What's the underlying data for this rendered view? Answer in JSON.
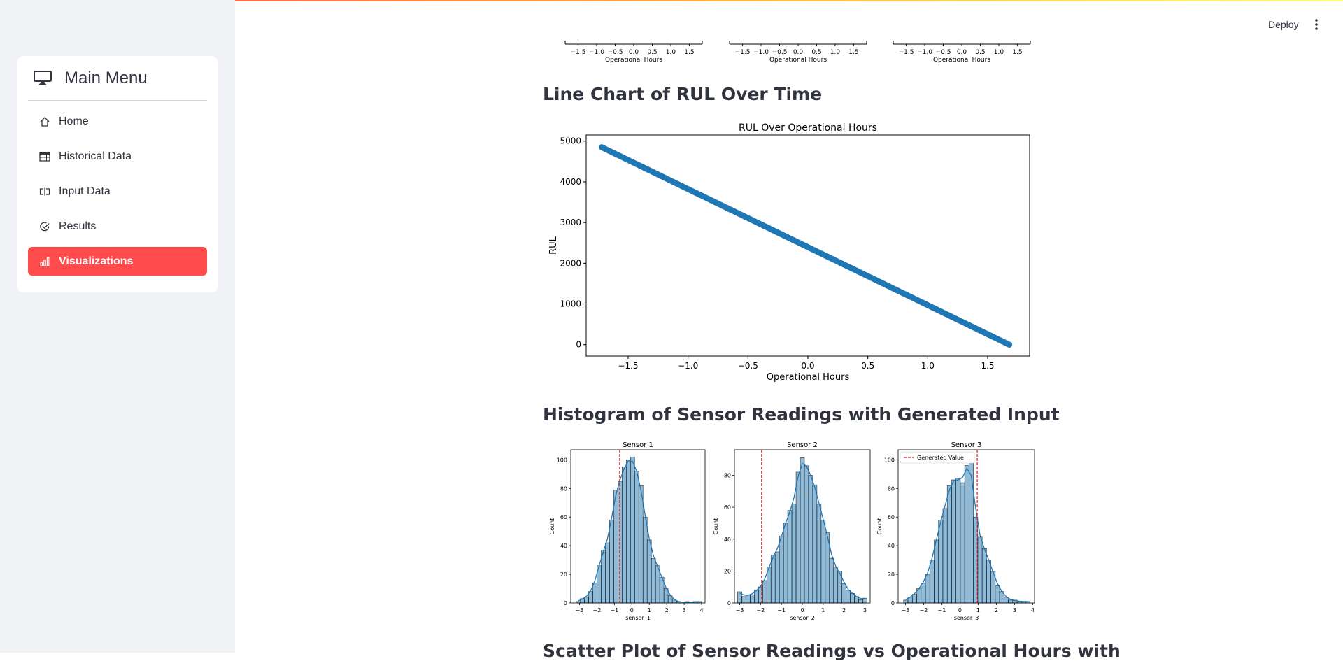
{
  "app": {
    "deploy_label": "Deploy"
  },
  "sidebar": {
    "title": "Main Menu",
    "items": [
      {
        "label": "Home",
        "icon": "house-icon"
      },
      {
        "label": "Historical Data",
        "icon": "table-icon"
      },
      {
        "label": "Input Data",
        "icon": "input-cursor-icon"
      },
      {
        "label": "Results",
        "icon": "check-circle-icon"
      },
      {
        "label": "Visualizations",
        "icon": "bar-chart-icon",
        "active": true
      }
    ]
  },
  "main": {
    "section_line": "Line Chart of RUL Over Time",
    "section_hist": "Histogram of Sensor Readings with Generated Input",
    "section_scatter": "Scatter Plot of Sensor Readings vs Operational Hours with"
  },
  "top_axes": {
    "xlabel": "Operational Hours",
    "ticks": [
      "−1.5",
      "−1.0",
      "−0.5",
      "0.0",
      "0.5",
      "1.0",
      "1.5"
    ]
  },
  "chart_data": [
    {
      "type": "scatter",
      "title": "RUL Over Operational Hours",
      "xlabel": "Operational Hours",
      "ylabel": "RUL",
      "xlim": [
        -1.85,
        1.85
      ],
      "ylim": [
        -280,
        5150
      ],
      "x_ticks": [
        -1.5,
        -1.0,
        -0.5,
        0.0,
        0.5,
        1.0,
        1.5
      ],
      "x_tick_labels": [
        "−1.5",
        "−1.0",
        "−0.5",
        "0.0",
        "0.5",
        "1.0",
        "1.5"
      ],
      "y_ticks": [
        0,
        1000,
        2000,
        3000,
        4000,
        5000
      ],
      "y_tick_labels": [
        "0",
        "1000",
        "2000",
        "3000",
        "4000",
        "5000"
      ],
      "series": [
        {
          "x_start": -1.72,
          "x_end": 1.68,
          "y_start": 4850,
          "y_end": 0
        }
      ],
      "color": "#1f77b4"
    },
    {
      "type": "bar",
      "title": "Sensor 1",
      "xlabel": "sensor_1",
      "ylabel": "Count",
      "xlim": [
        -3.5,
        4.2
      ],
      "ylim": [
        0,
        107
      ],
      "x_ticks": [
        -3,
        -2,
        -1,
        0,
        1,
        2,
        3,
        4
      ],
      "x_tick_labels": [
        "−3",
        "−2",
        "−1",
        "0",
        "1",
        "2",
        "3",
        "4"
      ],
      "y_ticks": [
        0,
        20,
        40,
        60,
        80,
        100
      ],
      "bin_start": -3.2,
      "bin_width": 0.24,
      "counts": [
        1,
        3,
        4,
        8,
        14,
        26,
        37,
        42,
        58,
        79,
        85,
        95,
        100,
        102,
        92,
        82,
        60,
        44,
        31,
        26,
        18,
        10,
        5,
        2,
        1,
        0,
        1,
        0,
        1,
        1
      ],
      "generated_value": -0.7,
      "color": "#1f77b4"
    },
    {
      "type": "bar",
      "title": "Sensor 2",
      "xlabel": "sensor_2",
      "ylabel": "Count",
      "xlim": [
        -3.25,
        3.25
      ],
      "ylim": [
        0,
        96
      ],
      "x_ticks": [
        -3,
        -2,
        -1,
        0,
        1,
        2,
        3
      ],
      "x_tick_labels": [
        "−3",
        "−2",
        "−1",
        "0",
        "1",
        "2",
        "3"
      ],
      "y_ticks": [
        0,
        20,
        40,
        60,
        80
      ],
      "bin_start": -3.1,
      "bin_width": 0.2,
      "counts": [
        7,
        4,
        5,
        5,
        8,
        10,
        14,
        22,
        30,
        32,
        42,
        50,
        58,
        62,
        82,
        91,
        86,
        80,
        74,
        62,
        52,
        44,
        28,
        22,
        20,
        12,
        8,
        6,
        4,
        2,
        3
      ],
      "generated_value": -1.95,
      "color": "#1f77b4"
    },
    {
      "type": "bar",
      "title": "Sensor 3",
      "xlabel": "sensor_3",
      "ylabel": "Count",
      "xlim": [
        -3.4,
        4.1
      ],
      "ylim": [
        0,
        107
      ],
      "x_ticks": [
        -3,
        -2,
        -1,
        0,
        1,
        2,
        3,
        4
      ],
      "x_tick_labels": [
        "−3",
        "−2",
        "−1",
        "0",
        "1",
        "2",
        "3",
        "4"
      ],
      "y_ticks": [
        0,
        20,
        40,
        60,
        80,
        100
      ],
      "bin_start": -3.1,
      "bin_width": 0.24,
      "counts": [
        2,
        4,
        6,
        10,
        14,
        20,
        30,
        44,
        58,
        66,
        82,
        86,
        87,
        84,
        96,
        100,
        60,
        46,
        38,
        30,
        22,
        12,
        8,
        4,
        2,
        2,
        1,
        1,
        1
      ],
      "generated_value": 0.95,
      "legend": "Generated Value",
      "color": "#1f77b4"
    }
  ]
}
